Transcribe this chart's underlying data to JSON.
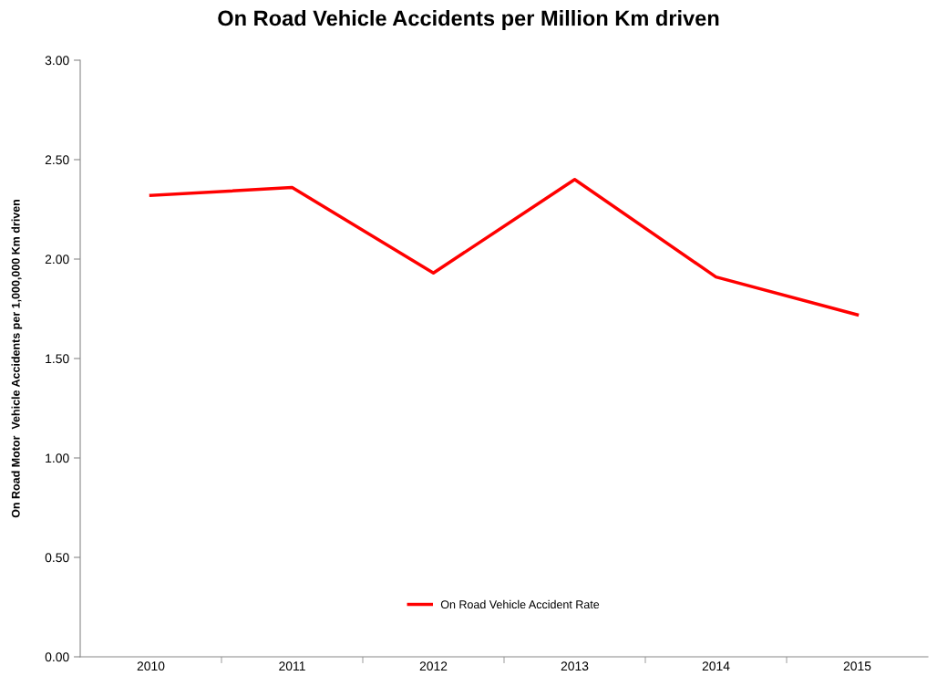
{
  "chart_data": {
    "type": "line",
    "title": "On Road Vehicle Accidents per Million Km driven",
    "ylabel": "On Road Motor  Vehicle Accidents per 1,000,000 Km driven",
    "categories": [
      "2010",
      "2011",
      "2012",
      "2013",
      "2014",
      "2015"
    ],
    "series": [
      {
        "name": "On Road Vehicle Accident Rate",
        "color": "#ff0000",
        "values": [
          2.32,
          2.36,
          1.93,
          2.4,
          1.91,
          1.72
        ]
      }
    ],
    "ylim": [
      0,
      3
    ],
    "yticks": [
      {
        "value": 0,
        "label": "0.00"
      },
      {
        "value": 0.5,
        "label": "0.50"
      },
      {
        "value": 1,
        "label": "1.00"
      },
      {
        "value": 1.5,
        "label": "1.50"
      },
      {
        "value": 2,
        "label": "2.00"
      },
      {
        "value": 2.5,
        "label": "2.50"
      },
      {
        "value": 3,
        "label": "3.00"
      }
    ],
    "grid": false,
    "legend": "bottom",
    "marker": "none",
    "line_style": "solid"
  }
}
